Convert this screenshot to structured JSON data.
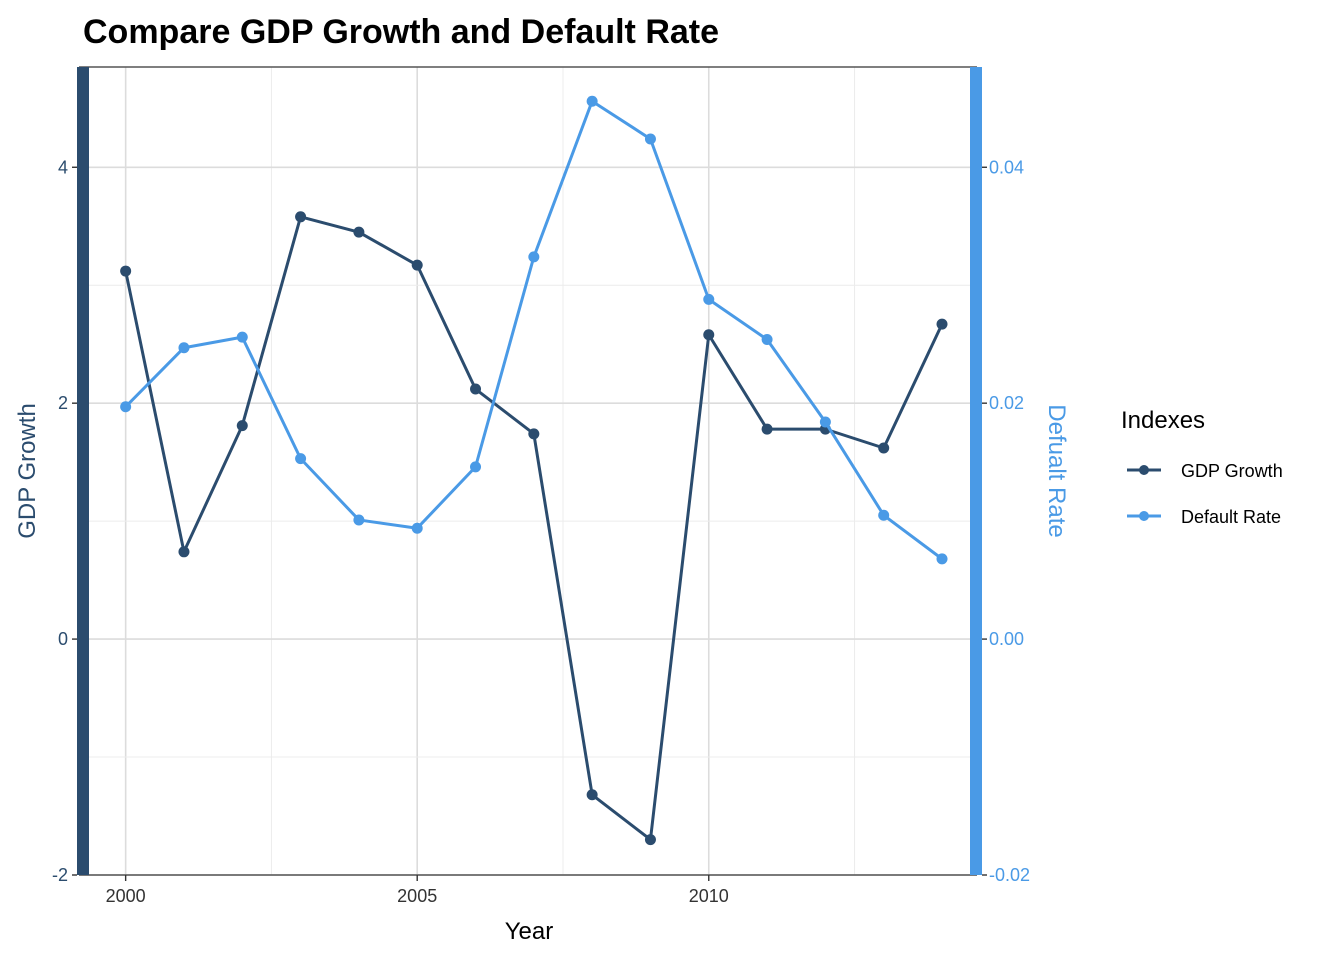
{
  "chart_data": {
    "type": "line",
    "title": "Compare GDP Growth and Default Rate",
    "xlabel": "Year",
    "ylabel_left": "GDP Growth",
    "ylabel_right": "Defualt Rate",
    "x": [
      2000,
      2001,
      2002,
      2003,
      2004,
      2005,
      2006,
      2007,
      2008,
      2009,
      2010,
      2011,
      2012,
      2013,
      2014
    ],
    "xlim": [
      1999.2,
      2014.6
    ],
    "x_ticks": [
      2000,
      2005,
      2010
    ],
    "x_tick_labels": [
      "2000",
      "2005",
      "2010"
    ],
    "ylim_left": [
      -2,
      4.85
    ],
    "y_ticks_left": [
      -2,
      0,
      2,
      4
    ],
    "y_tick_labels_left": [
      "-2",
      "0",
      "2",
      "4"
    ],
    "ylim_right": [
      -0.02,
      0.0485
    ],
    "y_ticks_right": [
      -0.02,
      0,
      0.02,
      0.04
    ],
    "y_tick_labels_right": [
      "-0.02",
      "0.00",
      "0.02",
      "0.04"
    ],
    "grid": true,
    "legend_title": "Indexes",
    "legend_position": "right",
    "series": [
      {
        "name": "GDP Growth",
        "axis": "left",
        "color": "#2b4c6e",
        "values": [
          3.12,
          0.74,
          1.81,
          3.58,
          3.45,
          3.17,
          2.12,
          1.74,
          -1.32,
          -1.7,
          2.58,
          1.78,
          1.78,
          1.62,
          2.67
        ]
      },
      {
        "name": "Default Rate",
        "axis": "right",
        "color": "#4a9ae6",
        "values": [
          0.0197,
          0.0247,
          0.0256,
          0.0153,
          0.0101,
          0.0094,
          0.0146,
          0.0324,
          0.0456,
          0.0424,
          0.0288,
          0.0254,
          0.0184,
          0.0105,
          0.0068
        ]
      }
    ]
  }
}
